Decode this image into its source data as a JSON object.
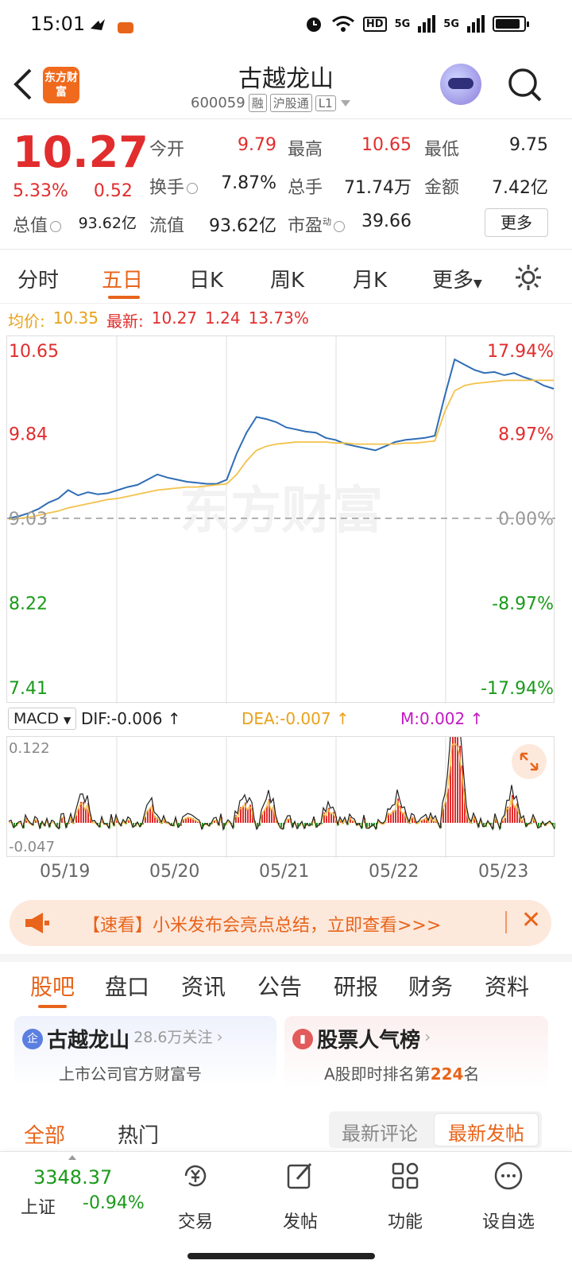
{
  "status_bar": {
    "time": "15:01",
    "net1": "HD",
    "net2": "5G",
    "net3": "5G"
  },
  "header": {
    "back_icon": "chevron-left-icon",
    "logo_text": "东方财富",
    "title": "古越龙山",
    "code": "600059",
    "tag_rong": "融",
    "tag_hgt": "沪股通",
    "tag_l1": "L1"
  },
  "quote": {
    "price": "10.27",
    "change_pct": "5.33%",
    "change": "0.52",
    "open_label": "今开",
    "open": "9.79",
    "high_label": "最高",
    "high": "10.65",
    "low_label": "最低",
    "low": "9.75",
    "turnover_label": "换手",
    "turnover": "7.87%",
    "volume_label": "总手",
    "volume": "71.74万",
    "amount_label": "金额",
    "amount": "7.42亿",
    "mktcap_label": "总值",
    "mktcap": "93.62亿",
    "float_label": "流值",
    "float": "93.62亿",
    "pe_label": "市盈",
    "pe_sup": "动",
    "pe": "39.66",
    "more": "更多"
  },
  "kline_tabs": [
    "分时",
    "五日",
    "日K",
    "周K",
    "月K",
    "更多"
  ],
  "avg_row": {
    "avg_label": "均价:",
    "avg": "10.35",
    "latest_label": "最新:",
    "latest": "10.27",
    "chg": "1.24",
    "pct": "13.73%"
  },
  "chart_data": {
    "type": "line",
    "y_left_ticks": [
      "10.65",
      "9.84",
      "9.03",
      "8.22",
      "7.41"
    ],
    "y_right_ticks": [
      "17.94%",
      "8.97%",
      "0.00%",
      "-8.97%",
      "-17.94%"
    ],
    "ylim": [
      7.41,
      10.65
    ],
    "watermark": "东方财富",
    "x_labels": [
      "05/19",
      "05/20",
      "05/21",
      "05/22",
      "05/23"
    ],
    "series": [
      {
        "name": "price",
        "color": "#2f6db5",
        "values": [
          9.03,
          9.05,
          9.08,
          9.12,
          9.18,
          9.22,
          9.3,
          9.25,
          9.28,
          9.26,
          9.27,
          9.3,
          9.33,
          9.35,
          9.4,
          9.45,
          9.42,
          9.4,
          9.38,
          9.37,
          9.36,
          9.36,
          9.4,
          9.65,
          9.85,
          10.0,
          9.98,
          9.95,
          9.9,
          9.88,
          9.86,
          9.85,
          9.8,
          9.78,
          9.74,
          9.72,
          9.7,
          9.68,
          9.72,
          9.76,
          9.78,
          9.79,
          9.8,
          9.82,
          10.2,
          10.55,
          10.5,
          10.45,
          10.42,
          10.43,
          10.4,
          10.42,
          10.38,
          10.35,
          10.3,
          10.27
        ]
      },
      {
        "name": "average",
        "color": "#f3c24a",
        "values": [
          9.02,
          9.03,
          9.04,
          9.06,
          9.08,
          9.1,
          9.13,
          9.15,
          9.17,
          9.19,
          9.21,
          9.22,
          9.24,
          9.26,
          9.28,
          9.3,
          9.31,
          9.32,
          9.33,
          9.33,
          9.34,
          9.35,
          9.36,
          9.45,
          9.58,
          9.68,
          9.72,
          9.74,
          9.75,
          9.76,
          9.76,
          9.76,
          9.76,
          9.75,
          9.75,
          9.74,
          9.74,
          9.74,
          9.74,
          9.74,
          9.75,
          9.75,
          9.76,
          9.77,
          10.05,
          10.25,
          10.3,
          10.32,
          10.33,
          10.34,
          10.35,
          10.35,
          10.35,
          10.35,
          10.35,
          10.35
        ]
      }
    ]
  },
  "macd": {
    "selector": "MACD",
    "dif": "DIF:-0.006",
    "dea": "DEA:-0.007",
    "m": "M:0.002",
    "top": "0.122",
    "bottom": "-0.047"
  },
  "banner": {
    "text": "【速看】小米发布会亮点总结，立即查看>>>"
  },
  "guba_tabs": [
    "股吧",
    "盘口",
    "资讯",
    "公告",
    "研报",
    "财务",
    "资料"
  ],
  "cards": {
    "c1_icon": "企",
    "c1_title": "古越龙山",
    "c1_follow": "28.6万关注",
    "c1_sub": "上市公司官方财富号",
    "c2_title": "股票人气榜",
    "c2_sub_pre": "A股即时排名第",
    "c2_rank": "224",
    "c2_sub_post": "名"
  },
  "sort": {
    "all": "全部",
    "hot": "热门",
    "latest_comment": "最新评论",
    "latest_post": "最新发帖"
  },
  "bottom": {
    "index_value": "3348.37",
    "index_name": "上证",
    "index_chg": "-0.94%",
    "nav": [
      "交易",
      "发帖",
      "功能",
      "设自选"
    ]
  },
  "colors": {
    "up": "#e12d2d",
    "down": "#1a9a1a",
    "accent": "#e8641a",
    "price_line": "#2f6db5",
    "avg_line": "#f3c24a"
  }
}
